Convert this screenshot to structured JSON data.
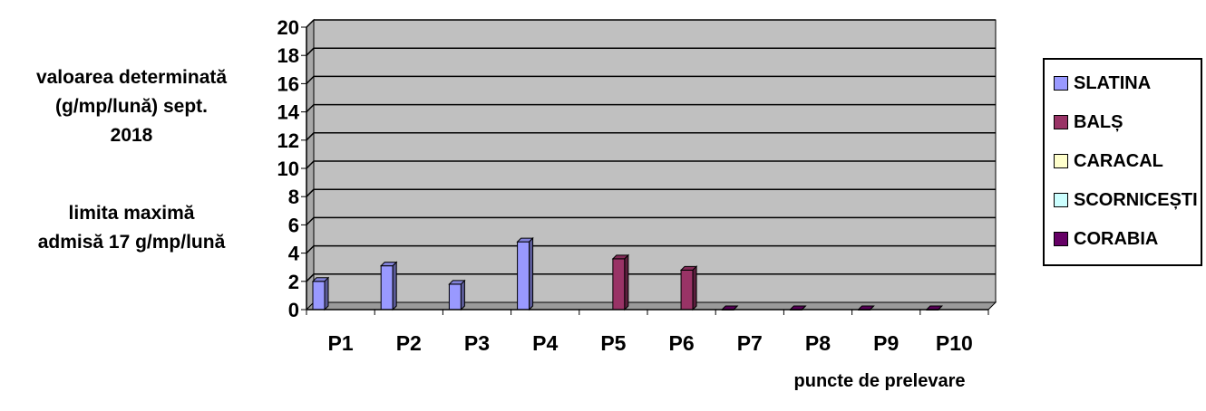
{
  "chart_data": {
    "type": "bar",
    "categories": [
      "P1",
      "P2",
      "P3",
      "P4",
      "P5",
      "P6",
      "P7",
      "P8",
      "P9",
      "P10"
    ],
    "series": [
      {
        "name": "SLATINA",
        "color": "#9999ff",
        "values": [
          2.0,
          3.1,
          1.8,
          4.8,
          0,
          0,
          0,
          0,
          0,
          0
        ]
      },
      {
        "name": "BALȘ",
        "color": "#993366",
        "values": [
          0,
          0,
          0,
          0,
          3.6,
          2.8,
          0,
          0,
          0,
          0
        ]
      },
      {
        "name": "CARACAL",
        "color": "#ffffcc",
        "values": [
          0,
          0,
          0,
          0,
          0,
          0,
          0,
          0,
          0,
          0
        ]
      },
      {
        "name": "SCORNICEȘTI",
        "color": "#ccffff",
        "values": [
          0,
          0,
          0,
          0,
          0,
          0,
          0,
          0,
          0,
          0
        ]
      },
      {
        "name": "CORABIA",
        "color": "#660066",
        "values": [
          0,
          0,
          0,
          0,
          0,
          0,
          0,
          0,
          0,
          0
        ]
      }
    ],
    "yticks": [
      0,
      2,
      4,
      6,
      8,
      10,
      12,
      14,
      16,
      18,
      20
    ],
    "ylim": [
      0,
      20
    ],
    "grid": true,
    "legend_position": "right",
    "ylabel_lines": [
      "valoarea determinată",
      "(g/mp/lună) sept.",
      "2018"
    ],
    "note_lines": [
      "limita maximă",
      "admisă 17 g/mp/lună"
    ],
    "xlabel": "puncte de prelevare"
  },
  "colors": {
    "plot_background": "#c0c0c0",
    "gridline": "#000000"
  }
}
